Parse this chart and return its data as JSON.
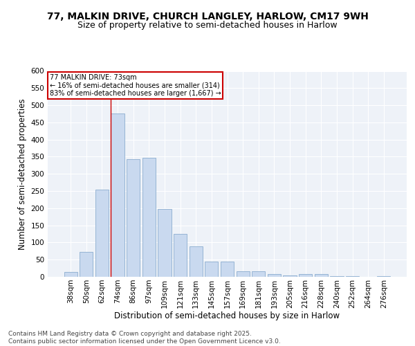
{
  "title_line1": "77, MALKIN DRIVE, CHURCH LANGLEY, HARLOW, CM17 9WH",
  "title_line2": "Size of property relative to semi-detached houses in Harlow",
  "xlabel": "Distribution of semi-detached houses by size in Harlow",
  "ylabel": "Number of semi-detached properties",
  "categories": [
    "38sqm",
    "50sqm",
    "62sqm",
    "74sqm",
    "86sqm",
    "97sqm",
    "109sqm",
    "121sqm",
    "133sqm",
    "145sqm",
    "157sqm",
    "169sqm",
    "181sqm",
    "193sqm",
    "205sqm",
    "216sqm",
    "228sqm",
    "240sqm",
    "252sqm",
    "264sqm",
    "276sqm"
  ],
  "values": [
    15,
    73,
    255,
    475,
    343,
    347,
    197,
    125,
    88,
    45,
    45,
    16,
    16,
    8,
    5,
    8,
    8,
    3,
    2,
    1,
    2
  ],
  "bar_color": "#c9d9ef",
  "bar_edge_color": "#8aaccf",
  "vline_color": "#cc0000",
  "vline_x_index": 2.575,
  "annotation_title": "77 MALKIN DRIVE: 73sqm",
  "annotation_line1": "← 16% of semi-detached houses are smaller (314)",
  "annotation_line2": "83% of semi-detached houses are larger (1,667) →",
  "annotation_box_facecolor": "#ffffff",
  "annotation_box_edgecolor": "#cc0000",
  "ylim": [
    0,
    600
  ],
  "yticks": [
    0,
    50,
    100,
    150,
    200,
    250,
    300,
    350,
    400,
    450,
    500,
    550,
    600
  ],
  "footer_line1": "Contains HM Land Registry data © Crown copyright and database right 2025.",
  "footer_line2": "Contains public sector information licensed under the Open Government Licence v3.0.",
  "bg_color": "#eef2f8",
  "grid_color": "#ffffff",
  "title_fontsize": 10,
  "subtitle_fontsize": 9,
  "axis_label_fontsize": 8.5,
  "tick_fontsize": 7.5,
  "annotation_fontsize": 7,
  "footer_fontsize": 6.5
}
